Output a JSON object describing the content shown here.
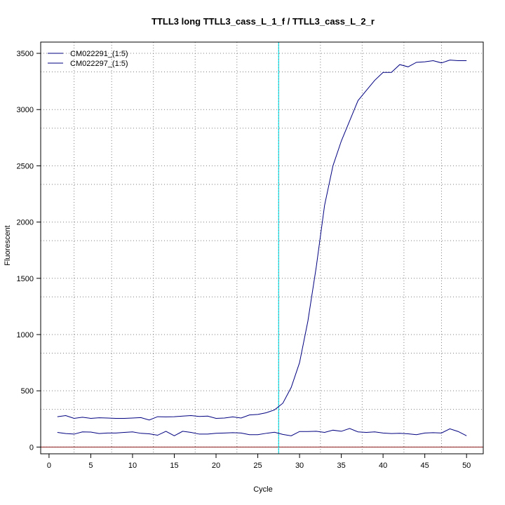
{
  "chart_data": {
    "type": "line",
    "title": "TTLL3 long TTLL3_cass_L_1_f / TTLL3_cass_L_2_r",
    "xlabel": "Cycle",
    "ylabel": "Fluorescent",
    "xlim": [
      -1,
      52
    ],
    "ylim": [
      -60,
      3600
    ],
    "xticks": [
      0,
      5,
      10,
      15,
      20,
      25,
      30,
      35,
      40,
      45,
      50
    ],
    "yticks": [
      0,
      500,
      1000,
      1500,
      2000,
      2500,
      3000,
      3500
    ],
    "grid": "dotted",
    "vgrid_x": [
      3,
      7.5,
      12.5,
      17.5,
      22.5,
      27.5,
      32.5,
      37.5,
      42.5,
      47
    ],
    "hgrid_y": [
      0,
      335,
      500,
      835,
      1000,
      1335,
      1500,
      1835,
      2000,
      2335,
      2500,
      2835,
      3000,
      3335,
      3500
    ],
    "threshold_x": 27.5,
    "threshold_color": "#00e5ee",
    "baseline_color": "#8b1a1a",
    "legend_position": "top-left",
    "series": [
      {
        "name": "CM022291_(1:5)",
        "color": "#000080",
        "x": [
          1,
          2,
          3,
          4,
          5,
          6,
          7,
          8,
          9,
          10,
          11,
          12,
          13,
          14,
          15,
          16,
          17,
          18,
          19,
          20,
          21,
          22,
          23,
          24,
          25,
          26,
          27,
          28,
          29,
          30,
          31,
          32,
          33,
          34,
          35,
          36,
          37,
          38,
          39,
          40,
          41,
          42,
          43,
          44,
          45,
          46,
          47,
          48,
          49,
          50
        ],
        "values": [
          270,
          280,
          255,
          265,
          255,
          260,
          258,
          255,
          255,
          258,
          262,
          240,
          270,
          268,
          270,
          275,
          280,
          272,
          275,
          255,
          258,
          268,
          258,
          285,
          290,
          305,
          330,
          390,
          530,
          750,
          1120,
          1600,
          2150,
          2500,
          2720,
          2900,
          3080,
          3170,
          3260,
          3330,
          3330,
          3400,
          3380,
          3420,
          3425,
          3435,
          3415,
          3440,
          3435,
          3435
        ]
      },
      {
        "name": "CM022297_(1:5)",
        "color": "#000080",
        "x": [
          1,
          2,
          3,
          4,
          5,
          6,
          7,
          8,
          9,
          10,
          11,
          12,
          13,
          14,
          15,
          16,
          17,
          18,
          19,
          20,
          21,
          22,
          23,
          24,
          25,
          26,
          27,
          28,
          29,
          30,
          31,
          32,
          33,
          34,
          35,
          36,
          37,
          38,
          39,
          40,
          41,
          42,
          43,
          44,
          45,
          46,
          47,
          48,
          49,
          50
        ],
        "values": [
          130,
          120,
          115,
          135,
          133,
          120,
          125,
          125,
          130,
          135,
          122,
          118,
          105,
          140,
          100,
          140,
          130,
          115,
          115,
          122,
          125,
          128,
          125,
          110,
          110,
          122,
          132,
          112,
          100,
          138,
          138,
          140,
          130,
          150,
          140,
          165,
          135,
          130,
          135,
          125,
          120,
          122,
          118,
          110,
          125,
          128,
          125,
          162,
          138,
          100
        ]
      }
    ]
  }
}
